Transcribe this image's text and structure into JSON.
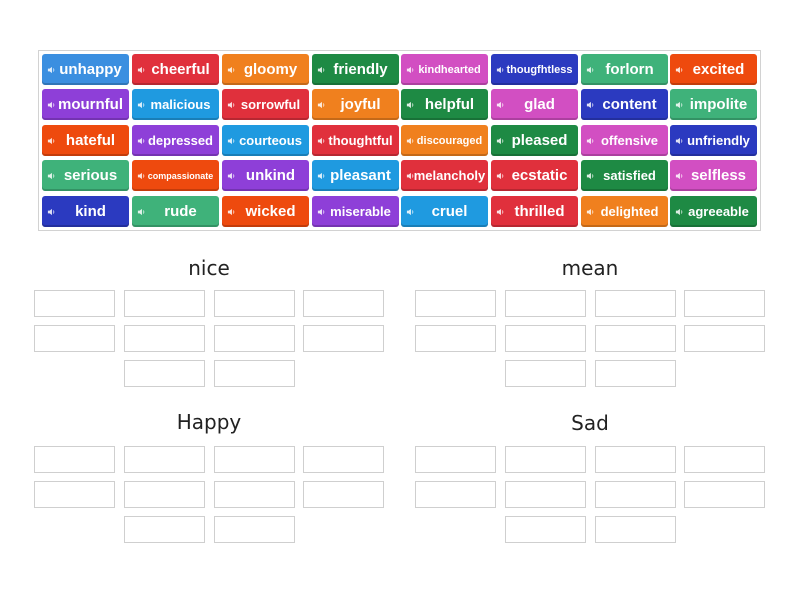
{
  "tiles": [
    {
      "label": "unhappy",
      "color": "#3b8fe0"
    },
    {
      "label": "cheerful",
      "color": "#e0303c"
    },
    {
      "label": "gloomy",
      "color": "#f0801e"
    },
    {
      "label": "friendly",
      "color": "#1e8a44"
    },
    {
      "label": "kindhearted",
      "color": "#d24fc2"
    },
    {
      "label": "thougfhtless",
      "color": "#2b3ac0"
    },
    {
      "label": "forlorn",
      "color": "#3fb27a"
    },
    {
      "label": "excited",
      "color": "#ee4a0e"
    },
    {
      "label": "mournful",
      "color": "#8e3fd8"
    },
    {
      "label": "malicious",
      "color": "#1f9ae0"
    },
    {
      "label": "sorrowful",
      "color": "#e0303c"
    },
    {
      "label": "joyful",
      "color": "#f0801e"
    },
    {
      "label": "helpful",
      "color": "#1e8a44"
    },
    {
      "label": "glad",
      "color": "#d24fc2"
    },
    {
      "label": "content",
      "color": "#2b3ac0"
    },
    {
      "label": "impolite",
      "color": "#3fb27a"
    },
    {
      "label": "hateful",
      "color": "#ee4a0e"
    },
    {
      "label": "depressed",
      "color": "#8e3fd8"
    },
    {
      "label": "courteous",
      "color": "#1f9ae0"
    },
    {
      "label": "thoughtful",
      "color": "#e0303c"
    },
    {
      "label": "discouraged",
      "color": "#f0801e"
    },
    {
      "label": "pleased",
      "color": "#1e8a44"
    },
    {
      "label": "offensive",
      "color": "#d24fc2"
    },
    {
      "label": "unfriendly",
      "color": "#2b3ac0"
    },
    {
      "label": "serious",
      "color": "#3fb27a"
    },
    {
      "label": "compassionate",
      "color": "#ee4a0e"
    },
    {
      "label": "unkind",
      "color": "#8e3fd8"
    },
    {
      "label": "pleasant",
      "color": "#1f9ae0"
    },
    {
      "label": "melancholy",
      "color": "#e0303c"
    },
    {
      "label": "ecstatic",
      "color": "#e0303c"
    },
    {
      "label": "satisfied",
      "color": "#1e8a44"
    },
    {
      "label": "selfless",
      "color": "#d24fc2"
    },
    {
      "label": "kind",
      "color": "#2b3ac0"
    },
    {
      "label": "rude",
      "color": "#3fb27a"
    },
    {
      "label": "wicked",
      "color": "#ee4a0e"
    },
    {
      "label": "miserable",
      "color": "#8e3fd8"
    },
    {
      "label": "cruel",
      "color": "#1f9ae0"
    },
    {
      "label": "thrilled",
      "color": "#e0303c"
    },
    {
      "label": "delighted",
      "color": "#f0801e"
    },
    {
      "label": "agreeable",
      "color": "#1e8a44"
    }
  ],
  "categories": [
    {
      "id": "nice",
      "label": "nice"
    },
    {
      "id": "mean",
      "label": "mean"
    },
    {
      "id": "happy",
      "label": "Happy"
    },
    {
      "id": "sad",
      "label": "Sad"
    }
  ],
  "speaker_icon": "speaker-icon"
}
